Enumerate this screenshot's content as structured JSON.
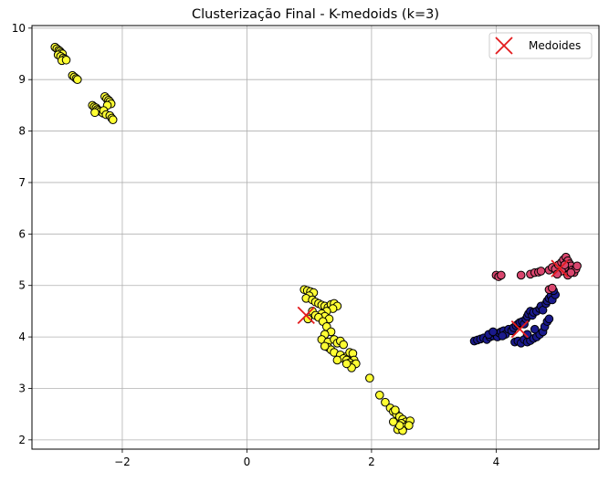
{
  "chart_data": {
    "type": "scatter",
    "title": "Clusterização Final - K-medoids (k=3)",
    "xlabel": "",
    "ylabel": "",
    "xlim": [
      -3.45,
      5.65
    ],
    "ylim": [
      1.82,
      10.05
    ],
    "xticks": [
      -2,
      0,
      2,
      4
    ],
    "yticks": [
      2,
      3,
      4,
      5,
      6,
      7,
      8,
      9,
      10
    ],
    "xtick_labels": [
      "−2",
      "0",
      "2",
      "4"
    ],
    "ytick_labels": [
      "2",
      "3",
      "4",
      "5",
      "6",
      "7",
      "8",
      "9",
      "10"
    ],
    "grid": true,
    "legend_position": "top-right",
    "series": [
      {
        "cluster": 0,
        "color": "#ffff33",
        "points": [
          [
            -3.08,
            9.63
          ],
          [
            -3.05,
            9.6
          ],
          [
            -3.02,
            9.57
          ],
          [
            -3.0,
            9.55
          ],
          [
            -2.98,
            9.52
          ],
          [
            -2.96,
            9.5
          ],
          [
            -3.03,
            9.48
          ],
          [
            -2.99,
            9.45
          ],
          [
            -2.95,
            9.42
          ],
          [
            -2.92,
            9.4
          ],
          [
            -2.97,
            9.37
          ],
          [
            -2.9,
            9.38
          ],
          [
            -2.8,
            9.08
          ],
          [
            -2.77,
            9.05
          ],
          [
            -2.74,
            9.02
          ],
          [
            -2.72,
            9.0
          ],
          [
            -2.48,
            8.5
          ],
          [
            -2.45,
            8.47
          ],
          [
            -2.42,
            8.45
          ],
          [
            -2.4,
            8.42
          ],
          [
            -2.38,
            8.4
          ],
          [
            -2.35,
            8.38
          ],
          [
            -2.44,
            8.36
          ],
          [
            -2.31,
            8.35
          ],
          [
            -2.28,
            8.67
          ],
          [
            -2.25,
            8.63
          ],
          [
            -2.22,
            8.6
          ],
          [
            -2.2,
            8.57
          ],
          [
            -2.18,
            8.53
          ],
          [
            -2.24,
            8.5
          ],
          [
            -2.3,
            8.4
          ],
          [
            -2.26,
            8.32
          ],
          [
            -2.2,
            8.3
          ],
          [
            -2.17,
            8.25
          ],
          [
            -2.15,
            8.22
          ],
          [
            0.92,
            4.92
          ],
          [
            0.97,
            4.9
          ],
          [
            1.02,
            4.88
          ],
          [
            1.07,
            4.86
          ],
          [
            1.0,
            4.8
          ],
          [
            0.95,
            4.75
          ],
          [
            1.05,
            4.72
          ],
          [
            1.1,
            4.68
          ],
          [
            1.15,
            4.65
          ],
          [
            1.2,
            4.62
          ],
          [
            1.25,
            4.6
          ],
          [
            1.3,
            4.57
          ],
          [
            1.35,
            4.63
          ],
          [
            1.4,
            4.65
          ],
          [
            1.45,
            4.6
          ],
          [
            1.38,
            4.55
          ],
          [
            1.28,
            4.5
          ],
          [
            1.2,
            4.45
          ],
          [
            1.25,
            4.4
          ],
          [
            1.32,
            4.35
          ],
          [
            1.05,
            4.5
          ],
          [
            1.1,
            4.42
          ],
          [
            1.15,
            4.38
          ],
          [
            0.98,
            4.35
          ],
          [
            1.22,
            4.3
          ],
          [
            1.28,
            4.2
          ],
          [
            1.35,
            4.1
          ],
          [
            1.25,
            4.05
          ],
          [
            1.2,
            3.95
          ],
          [
            1.3,
            3.9
          ],
          [
            1.4,
            3.95
          ],
          [
            1.45,
            3.88
          ],
          [
            1.5,
            3.92
          ],
          [
            1.55,
            3.85
          ],
          [
            1.3,
            3.8
          ],
          [
            1.35,
            3.75
          ],
          [
            1.25,
            3.82
          ],
          [
            1.4,
            3.7
          ],
          [
            1.5,
            3.65
          ],
          [
            1.6,
            3.62
          ],
          [
            1.65,
            3.7
          ],
          [
            1.7,
            3.68
          ],
          [
            1.55,
            3.58
          ],
          [
            1.6,
            3.55
          ],
          [
            1.72,
            3.55
          ],
          [
            1.65,
            3.5
          ],
          [
            1.7,
            3.45
          ],
          [
            1.75,
            3.48
          ],
          [
            1.68,
            3.4
          ],
          [
            1.45,
            3.55
          ],
          [
            1.6,
            3.48
          ],
          [
            1.97,
            3.2
          ],
          [
            2.13,
            2.87
          ],
          [
            2.22,
            2.73
          ],
          [
            2.3,
            2.62
          ],
          [
            2.35,
            2.55
          ],
          [
            2.4,
            2.5
          ],
          [
            2.38,
            2.58
          ],
          [
            2.45,
            2.45
          ],
          [
            2.5,
            2.4
          ],
          [
            2.55,
            2.35
          ],
          [
            2.58,
            2.3
          ],
          [
            2.48,
            2.32
          ],
          [
            2.52,
            2.25
          ],
          [
            2.42,
            2.2
          ],
          [
            2.5,
            2.18
          ],
          [
            2.62,
            2.37
          ],
          [
            2.6,
            2.28
          ],
          [
            2.45,
            2.28
          ],
          [
            2.35,
            2.35
          ]
        ]
      },
      {
        "cluster": 1,
        "color": "#1a1a8c",
        "points": [
          [
            3.65,
            3.92
          ],
          [
            3.7,
            3.94
          ],
          [
            3.75,
            3.96
          ],
          [
            3.8,
            3.98
          ],
          [
            3.85,
            3.95
          ],
          [
            3.9,
            4.0
          ],
          [
            3.95,
            4.02
          ],
          [
            4.0,
            4.05
          ],
          [
            4.02,
            4.0
          ],
          [
            4.05,
            4.08
          ],
          [
            4.08,
            4.1
          ],
          [
            4.12,
            4.12
          ],
          [
            4.15,
            4.05
          ],
          [
            4.2,
            4.15
          ],
          [
            4.25,
            4.12
          ],
          [
            4.28,
            4.18
          ],
          [
            4.32,
            4.22
          ],
          [
            4.35,
            4.25
          ],
          [
            4.38,
            4.28
          ],
          [
            4.42,
            4.3
          ],
          [
            4.45,
            4.25
          ],
          [
            4.48,
            4.35
          ],
          [
            4.5,
            4.4
          ],
          [
            4.52,
            4.45
          ],
          [
            4.55,
            4.5
          ],
          [
            4.58,
            4.42
          ],
          [
            4.6,
            4.48
          ],
          [
            4.65,
            4.5
          ],
          [
            4.7,
            4.55
          ],
          [
            4.72,
            4.6
          ],
          [
            4.75,
            4.52
          ],
          [
            4.8,
            4.65
          ],
          [
            4.82,
            4.7
          ],
          [
            4.85,
            4.75
          ],
          [
            4.88,
            4.8
          ],
          [
            4.9,
            4.72
          ],
          [
            4.95,
            4.82
          ],
          [
            4.92,
            4.9
          ],
          [
            4.3,
            3.9
          ],
          [
            4.35,
            3.92
          ],
          [
            4.4,
            3.88
          ],
          [
            4.45,
            3.95
          ],
          [
            4.5,
            3.9
          ],
          [
            4.55,
            3.93
          ],
          [
            4.6,
            3.97
          ],
          [
            4.65,
            4.0
          ],
          [
            4.7,
            4.05
          ],
          [
            4.75,
            4.1
          ],
          [
            4.78,
            4.2
          ],
          [
            4.82,
            4.3
          ],
          [
            4.85,
            4.35
          ],
          [
            4.62,
            4.15
          ],
          [
            4.5,
            4.05
          ],
          [
            3.88,
            4.05
          ],
          [
            3.95,
            4.1
          ],
          [
            4.1,
            4.02
          ]
        ]
      },
      {
        "cluster": 2,
        "color": "#d9466e",
        "points": [
          [
            4.0,
            5.2
          ],
          [
            4.04,
            5.17
          ],
          [
            4.08,
            5.2
          ],
          [
            4.4,
            5.2
          ],
          [
            4.55,
            5.22
          ],
          [
            4.62,
            5.25
          ],
          [
            4.68,
            5.26
          ],
          [
            4.72,
            5.28
          ],
          [
            4.85,
            5.3
          ],
          [
            4.9,
            5.35
          ],
          [
            4.95,
            5.32
          ],
          [
            5.0,
            5.4
          ],
          [
            5.05,
            5.45
          ],
          [
            5.08,
            5.5
          ],
          [
            5.12,
            5.55
          ],
          [
            5.15,
            5.48
          ],
          [
            5.18,
            5.42
          ],
          [
            5.2,
            5.38
          ],
          [
            5.22,
            5.3
          ],
          [
            5.25,
            5.25
          ],
          [
            5.28,
            5.32
          ],
          [
            5.3,
            5.38
          ],
          [
            5.1,
            5.35
          ],
          [
            5.05,
            5.28
          ],
          [
            4.98,
            5.22
          ],
          [
            5.15,
            5.2
          ],
          [
            5.2,
            5.25
          ],
          [
            5.1,
            5.4
          ],
          [
            4.85,
            4.92
          ],
          [
            4.9,
            4.95
          ]
        ]
      }
    ],
    "medoids": {
      "label": "Medoides",
      "color": "#e31a1c",
      "points": [
        [
          0.95,
          4.42
        ],
        [
          4.38,
          4.15
        ],
        [
          5.02,
          5.33
        ]
      ]
    }
  }
}
